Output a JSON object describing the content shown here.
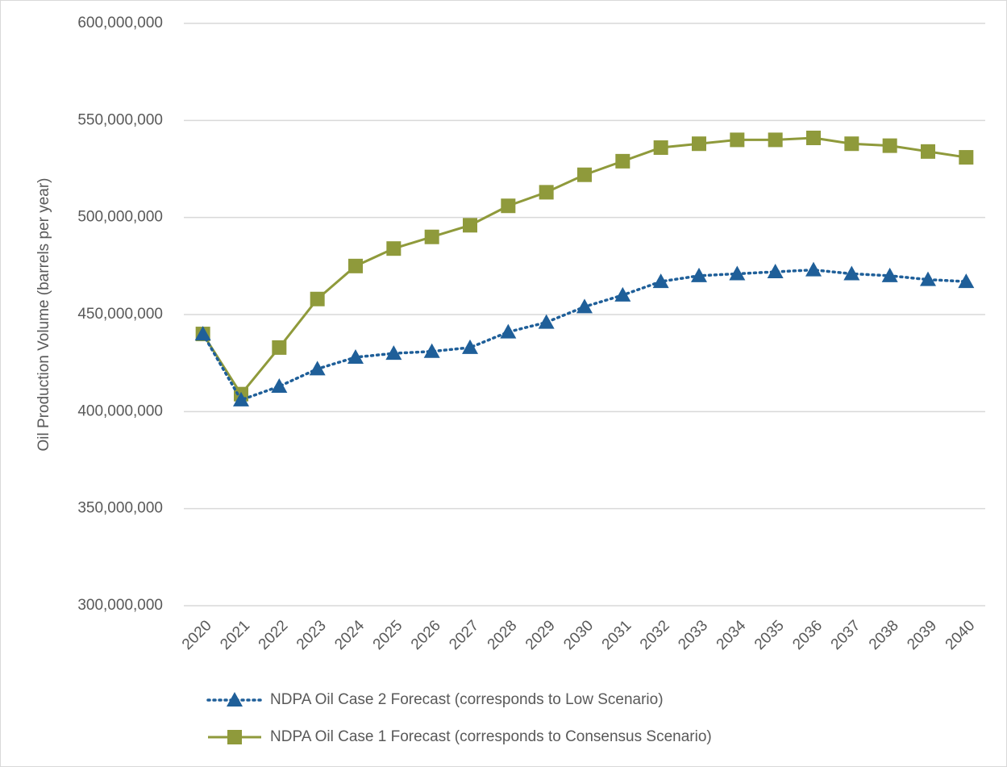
{
  "chart_data": {
    "type": "line",
    "y_label": "Oil Production Volume (barrels per year)",
    "categories": [
      "2020",
      "2021",
      "2022",
      "2023",
      "2024",
      "2025",
      "2026",
      "2027",
      "2028",
      "2029",
      "2030",
      "2031",
      "2032",
      "2033",
      "2034",
      "2035",
      "2036",
      "2037",
      "2038",
      "2039",
      "2040"
    ],
    "series": [
      {
        "name": "NDPA Oil Case 2 Forecast (corresponds to Low Scenario)",
        "color": "#1f5f99",
        "marker": "triangle",
        "dash": "dotted",
        "values": [
          440000000,
          406000000,
          413000000,
          422000000,
          428000000,
          430000000,
          431000000,
          433000000,
          441000000,
          446000000,
          454000000,
          460000000,
          467000000,
          470000000,
          471000000,
          472000000,
          473000000,
          471000000,
          470000000,
          468000000,
          467000000
        ]
      },
      {
        "name": "NDPA Oil Case 1 Forecast (corresponds to Consensus Scenario)",
        "color": "#8f9a3b",
        "marker": "square",
        "dash": "solid",
        "values": [
          440000000,
          409000000,
          433000000,
          458000000,
          475000000,
          484000000,
          490000000,
          496000000,
          506000000,
          513000000,
          522000000,
          529000000,
          536000000,
          538000000,
          540000000,
          540000000,
          541000000,
          538000000,
          537000000,
          534000000,
          531000000
        ]
      }
    ],
    "ylim": [
      300000000,
      600000000
    ],
    "yticks": [
      {
        "value": 300000000,
        "label": "300,000,000"
      },
      {
        "value": 350000000,
        "label": "350,000,000"
      },
      {
        "value": 400000000,
        "label": "400,000,000"
      },
      {
        "value": 450000000,
        "label": "450,000,000"
      },
      {
        "value": 500000000,
        "label": "500,000,000"
      },
      {
        "value": 550000000,
        "label": "550,000,000"
      },
      {
        "value": 600000000,
        "label": "600,000,000"
      }
    ],
    "grid": true,
    "legend": "bottom"
  }
}
